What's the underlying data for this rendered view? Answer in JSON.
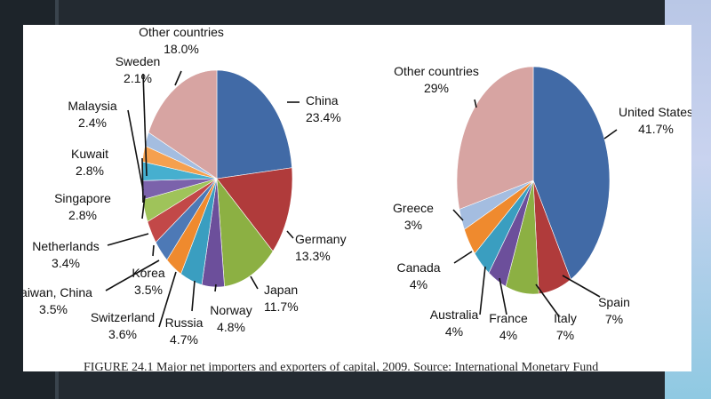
{
  "caption": "FIGURE 24.1 Major net importers and exporters of capital, 2009. Source: International Monetary Fund",
  "chart_data": [
    {
      "type": "pie",
      "title": "",
      "slices": [
        {
          "label": "China",
          "value_label": "23.4%",
          "value": 23.4,
          "color": "#416aa6"
        },
        {
          "label": "Germany",
          "value_label": "13.3%",
          "value": 13.3,
          "color": "#b03b3b"
        },
        {
          "label": "Japan",
          "value_label": "11.7%",
          "value": 11.7,
          "color": "#8cb043"
        },
        {
          "label": "Norway",
          "value_label": "4.8%",
          "value": 4.8,
          "color": "#6c4f9b"
        },
        {
          "label": "Russia",
          "value_label": "4.7%",
          "value": 4.7,
          "color": "#3a9ec0"
        },
        {
          "label": "Switzerland",
          "value_label": "3.6%",
          "value": 3.6,
          "color": "#ef8a2e"
        },
        {
          "label": "Taiwan, China",
          "value_label": "3.5%",
          "value": 3.5,
          "color": "#4d79b6"
        },
        {
          "label": "Korea",
          "value_label": "3.5%",
          "value": 3.5,
          "color": "#c24848"
        },
        {
          "label": "Netherlands",
          "value_label": "3.4%",
          "value": 3.4,
          "color": "#9fc35a"
        },
        {
          "label": "Singapore",
          "value_label": "2.8%",
          "value": 2.8,
          "color": "#7b62ab"
        },
        {
          "label": "Kuwait",
          "value_label": "2.8%",
          "value": 2.8,
          "color": "#46afcf"
        },
        {
          "label": "Malaysia",
          "value_label": "2.4%",
          "value": 2.4,
          "color": "#f5a04e"
        },
        {
          "label": "Sweden",
          "value_label": "2.1%",
          "value": 2.1,
          "color": "#a4bde0"
        },
        {
          "label": "Other countries",
          "value_label": "18.0%",
          "value": 18.0,
          "color": "#d7a4a2"
        }
      ]
    },
    {
      "type": "pie",
      "title": "",
      "slices": [
        {
          "label": "United States",
          "value_label": "41.7%",
          "value": 41.7,
          "color": "#416aa6"
        },
        {
          "label": "Spain",
          "value_label": "7%",
          "value": 7,
          "color": "#b03b3b"
        },
        {
          "label": "Italy",
          "value_label": "7%",
          "value": 7,
          "color": "#8cb043"
        },
        {
          "label": "France",
          "value_label": "4%",
          "value": 4,
          "color": "#6c4f9b"
        },
        {
          "label": "Australia",
          "value_label": "4%",
          "value": 4,
          "color": "#3a9ec0"
        },
        {
          "label": "Canada",
          "value_label": "4%",
          "value": 4,
          "color": "#ef8a2e"
        },
        {
          "label": "Greece",
          "value_label": "3%",
          "value": 3,
          "color": "#a4bde0"
        },
        {
          "label": "Other countries",
          "value_label": "29%",
          "value": 29,
          "color": "#d7a4a2"
        }
      ]
    }
  ]
}
